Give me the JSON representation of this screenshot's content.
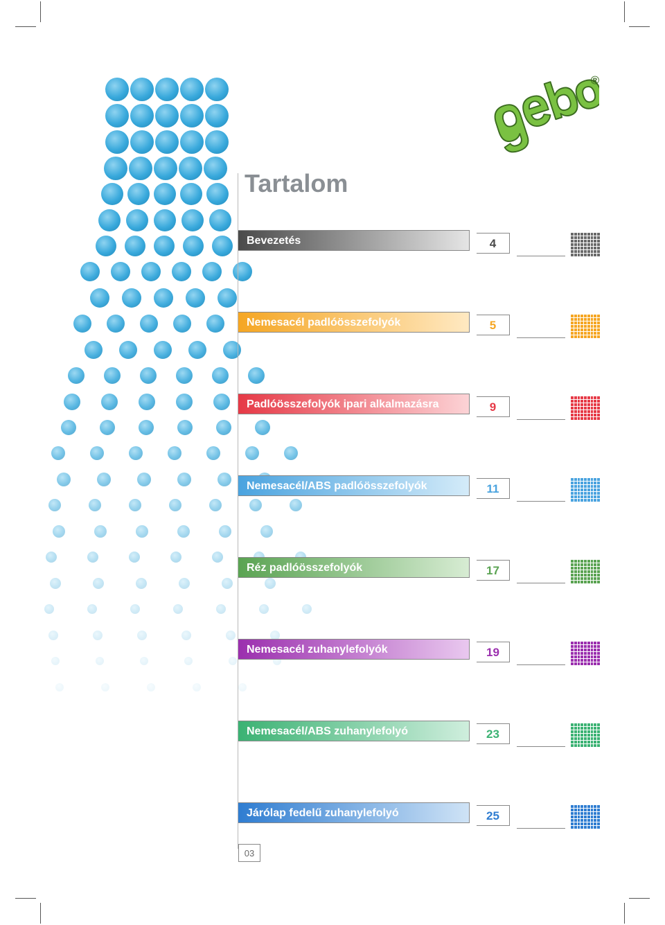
{
  "page": {
    "title": "Tartalom",
    "page_number": "03"
  },
  "logo": {
    "text": "gebo",
    "color": "#7ac142",
    "registered": "®"
  },
  "toc": [
    {
      "label": "Bevezetés",
      "page": "4",
      "color_from": "#4a4a4a",
      "color_to": "#e5e5e5",
      "num_color": "#4a4a4a",
      "dot_color": "#6a6a6a"
    },
    {
      "label": "Nemesacél padlóösszefolyók",
      "page": "5",
      "color_from": "#f5a623",
      "color_to": "#ffe9c2",
      "num_color": "#f5a623",
      "dot_color": "#f5a623"
    },
    {
      "label": "Padlóösszefolyók ipari alkalmazásra",
      "page": "9",
      "color_from": "#e63946",
      "color_to": "#fcd3d6",
      "num_color": "#e63946",
      "dot_color": "#e63946"
    },
    {
      "label": "Nemesacél/ABS padlóösszefolyók",
      "page": "11",
      "color_from": "#4aa3df",
      "color_to": "#d4ebf9",
      "num_color": "#4aa3df",
      "dot_color": "#4aa3df"
    },
    {
      "label": "Réz padlóösszefolyók",
      "page": "17",
      "color_from": "#5aa352",
      "color_to": "#d7ecd3",
      "num_color": "#5aa352",
      "dot_color": "#5aa352"
    },
    {
      "label": "Nemesacél zuhanylefolyók",
      "page": "19",
      "color_from": "#9b2fae",
      "color_to": "#e9c8ef",
      "num_color": "#9b2fae",
      "dot_color": "#9b2fae"
    },
    {
      "label": "Nemesacél/ABS zuhanylefolyó",
      "page": "23",
      "color_from": "#3bb273",
      "color_to": "#cfeedd",
      "num_color": "#3bb273",
      "dot_color": "#3bb273"
    },
    {
      "label": "Járólap fedelű zuhanylefolyó",
      "page": "25",
      "color_from": "#2f7dd1",
      "color_to": "#cfe3f6",
      "num_color": "#2f7dd1",
      "dot_color": "#2f7dd1"
    }
  ],
  "cascade": {
    "color": "#39a9dc",
    "rows": [
      {
        "count": 5,
        "size": 34,
        "gap": 36,
        "offset": 72,
        "opacity": 1.0
      },
      {
        "count": 5,
        "size": 34,
        "gap": 36,
        "offset": 72,
        "opacity": 1.0
      },
      {
        "count": 5,
        "size": 34,
        "gap": 36,
        "offset": 72,
        "opacity": 1.0
      },
      {
        "count": 5,
        "size": 34,
        "gap": 36,
        "offset": 70,
        "opacity": 1.0
      },
      {
        "count": 5,
        "size": 32,
        "gap": 38,
        "offset": 66,
        "opacity": 1.0
      },
      {
        "count": 5,
        "size": 32,
        "gap": 40,
        "offset": 62,
        "opacity": 1.0
      },
      {
        "count": 5,
        "size": 30,
        "gap": 42,
        "offset": 58,
        "opacity": 1.0
      },
      {
        "count": 6,
        "size": 28,
        "gap": 44,
        "offset": 36,
        "opacity": 0.98
      },
      {
        "count": 5,
        "size": 28,
        "gap": 46,
        "offset": 50,
        "opacity": 0.96
      },
      {
        "count": 6,
        "size": 26,
        "gap": 48,
        "offset": 26,
        "opacity": 0.94
      },
      {
        "count": 5,
        "size": 26,
        "gap": 50,
        "offset": 42,
        "opacity": 0.92
      },
      {
        "count": 6,
        "size": 24,
        "gap": 52,
        "offset": 18,
        "opacity": 0.88
      },
      {
        "count": 6,
        "size": 24,
        "gap": 54,
        "offset": 12,
        "opacity": 0.84
      },
      {
        "count": 6,
        "size": 22,
        "gap": 56,
        "offset": 8,
        "opacity": 0.78
      },
      {
        "count": 7,
        "size": 20,
        "gap": 56,
        "offset": -6,
        "opacity": 0.7
      },
      {
        "count": 6,
        "size": 20,
        "gap": 58,
        "offset": 2,
        "opacity": 0.62
      },
      {
        "count": 7,
        "size": 18,
        "gap": 58,
        "offset": -10,
        "opacity": 0.54
      },
      {
        "count": 6,
        "size": 18,
        "gap": 60,
        "offset": -4,
        "opacity": 0.46
      },
      {
        "count": 7,
        "size": 16,
        "gap": 60,
        "offset": -14,
        "opacity": 0.38
      },
      {
        "count": 6,
        "size": 16,
        "gap": 62,
        "offset": -8,
        "opacity": 0.3
      },
      {
        "count": 7,
        "size": 14,
        "gap": 62,
        "offset": -16,
        "opacity": 0.24
      },
      {
        "count": 6,
        "size": 14,
        "gap": 64,
        "offset": -10,
        "opacity": 0.18
      },
      {
        "count": 6,
        "size": 12,
        "gap": 64,
        "offset": -6,
        "opacity": 0.12
      },
      {
        "count": 5,
        "size": 12,
        "gap": 66,
        "offset": 0,
        "opacity": 0.08
      }
    ],
    "row_step": 38
  }
}
